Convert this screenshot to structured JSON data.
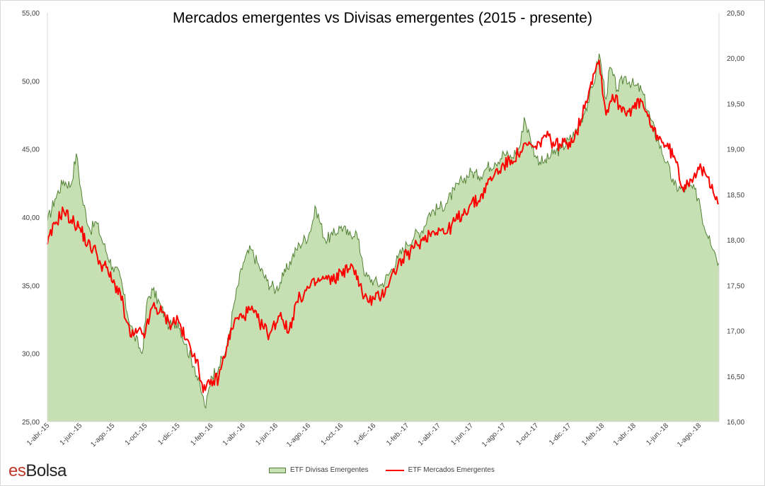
{
  "title": "Mercados emergentes vs Divisas emergentes (2015 - presente)",
  "brand": {
    "part1": "es",
    "part2": "Bolsa"
  },
  "chart_data": {
    "type": "area",
    "title": "Mercados emergentes vs Divisas emergentes (2015 - presente)",
    "x_tick_labels": [
      "1-abr.-15",
      "1-jun.-15",
      "1-ago.-15",
      "1-oct.-15",
      "1-dic.-15",
      "1-feb.-16",
      "1-abr.-16",
      "1-jun.-16",
      "1-ago.-16",
      "1-oct.-16",
      "1-dic.-16",
      "1-feb.-17",
      "1-abr.-17",
      "1-jun.-17",
      "1-ago.-17",
      "1-oct.-17",
      "1-dic.-17",
      "1-feb.-18",
      "1-abr.-18",
      "1-jun.-18",
      "1-ago.-18"
    ],
    "y_left": {
      "range": [
        25,
        55
      ],
      "ticks": [
        25,
        30,
        35,
        40,
        45,
        50,
        55
      ],
      "tick_labels": [
        "25,00",
        "30,00",
        "35,00",
        "40,00",
        "45,00",
        "50,00",
        "55,00"
      ]
    },
    "y_right": {
      "range": [
        16,
        20.5
      ],
      "ticks": [
        16,
        16.5,
        17,
        17.5,
        18,
        18.5,
        19,
        19.5,
        20,
        20.5
      ],
      "tick_labels": [
        "16,00",
        "16,50",
        "17,00",
        "17,50",
        "18,00",
        "18,50",
        "19,00",
        "19,50",
        "20,00",
        "20,50"
      ]
    },
    "legend_position": "bottom",
    "grid": false,
    "x_start": "2015-04-01",
    "series": [
      {
        "name": "ETF Divisas Emergentes",
        "kind": "area",
        "axis": "right",
        "color": "#548235",
        "fill": "#c6e0b4",
        "points": [
          [
            "2015-04-01",
            18.2
          ],
          [
            "2015-04-15",
            18.45
          ],
          [
            "2015-05-01",
            18.65
          ],
          [
            "2015-05-15",
            18.6
          ],
          [
            "2015-05-25",
            18.95
          ],
          [
            "2015-06-05",
            18.45
          ],
          [
            "2015-06-20",
            18.1
          ],
          [
            "2015-07-01",
            18.2
          ],
          [
            "2015-07-15",
            17.95
          ],
          [
            "2015-08-01",
            17.7
          ],
          [
            "2015-08-15",
            17.6
          ],
          [
            "2015-08-28",
            17.2
          ],
          [
            "2015-09-10",
            16.95
          ],
          [
            "2015-09-25",
            16.75
          ],
          [
            "2015-10-05",
            17.35
          ],
          [
            "2015-10-15",
            17.45
          ],
          [
            "2015-10-31",
            17.25
          ],
          [
            "2015-11-15",
            17.05
          ],
          [
            "2015-12-01",
            17.1
          ],
          [
            "2015-12-15",
            16.85
          ],
          [
            "2016-01-01",
            16.6
          ],
          [
            "2016-01-15",
            16.3
          ],
          [
            "2016-01-22",
            16.15
          ],
          [
            "2016-02-01",
            16.5
          ],
          [
            "2016-02-15",
            16.6
          ],
          [
            "2016-03-01",
            16.8
          ],
          [
            "2016-03-15",
            17.3
          ],
          [
            "2016-04-01",
            17.75
          ],
          [
            "2016-04-15",
            17.9
          ],
          [
            "2016-05-01",
            17.7
          ],
          [
            "2016-05-15",
            17.55
          ],
          [
            "2016-06-01",
            17.45
          ],
          [
            "2016-06-15",
            17.6
          ],
          [
            "2016-07-01",
            17.8
          ],
          [
            "2016-07-15",
            17.95
          ],
          [
            "2016-08-01",
            18.05
          ],
          [
            "2016-08-15",
            18.35
          ],
          [
            "2016-09-01",
            18.0
          ],
          [
            "2016-09-15",
            18.05
          ],
          [
            "2016-10-01",
            18.15
          ],
          [
            "2016-10-15",
            18.05
          ],
          [
            "2016-10-28",
            18.1
          ],
          [
            "2016-11-09",
            17.8
          ],
          [
            "2016-11-15",
            17.6
          ],
          [
            "2016-12-01",
            17.55
          ],
          [
            "2016-12-15",
            17.5
          ],
          [
            "2017-01-01",
            17.65
          ],
          [
            "2017-01-15",
            17.8
          ],
          [
            "2017-02-01",
            17.95
          ],
          [
            "2017-02-15",
            18.05
          ],
          [
            "2017-03-01",
            18.1
          ],
          [
            "2017-03-15",
            18.3
          ],
          [
            "2017-04-01",
            18.35
          ],
          [
            "2017-04-15",
            18.4
          ],
          [
            "2017-05-01",
            18.55
          ],
          [
            "2017-05-15",
            18.65
          ],
          [
            "2017-06-01",
            18.75
          ],
          [
            "2017-06-15",
            18.7
          ],
          [
            "2017-07-01",
            18.8
          ],
          [
            "2017-07-15",
            18.85
          ],
          [
            "2017-08-01",
            18.95
          ],
          [
            "2017-08-15",
            18.9
          ],
          [
            "2017-09-01",
            19.05
          ],
          [
            "2017-09-08",
            19.35
          ],
          [
            "2017-09-20",
            19.1
          ],
          [
            "2017-10-01",
            18.9
          ],
          [
            "2017-10-15",
            18.85
          ],
          [
            "2017-11-01",
            18.95
          ],
          [
            "2017-11-15",
            19.0
          ],
          [
            "2017-12-01",
            19.1
          ],
          [
            "2017-12-15",
            19.2
          ],
          [
            "2018-01-01",
            19.45
          ],
          [
            "2018-01-15",
            19.7
          ],
          [
            "2018-01-26",
            20.05
          ],
          [
            "2018-02-08",
            19.55
          ],
          [
            "2018-02-15",
            19.9
          ],
          [
            "2018-03-01",
            19.65
          ],
          [
            "2018-03-15",
            19.8
          ],
          [
            "2018-04-01",
            19.7
          ],
          [
            "2018-04-15",
            19.65
          ],
          [
            "2018-05-01",
            19.35
          ],
          [
            "2018-05-15",
            19.1
          ],
          [
            "2018-06-01",
            18.85
          ],
          [
            "2018-06-15",
            18.6
          ],
          [
            "2018-07-01",
            18.55
          ],
          [
            "2018-07-15",
            18.6
          ],
          [
            "2018-08-01",
            18.45
          ],
          [
            "2018-08-10",
            18.15
          ],
          [
            "2018-08-20",
            18.05
          ],
          [
            "2018-08-31",
            17.85
          ],
          [
            "2018-09-07",
            17.75
          ]
        ]
      },
      {
        "name": "ETF Mercados Emergentes",
        "kind": "line",
        "axis": "left",
        "color": "#ff0000",
        "points": [
          [
            "2015-04-01",
            38.0
          ],
          [
            "2015-04-15",
            39.5
          ],
          [
            "2015-05-01",
            40.5
          ],
          [
            "2015-05-15",
            39.8
          ],
          [
            "2015-06-01",
            39.2
          ],
          [
            "2015-06-15",
            38.0
          ],
          [
            "2015-07-01",
            37.5
          ],
          [
            "2015-07-10",
            36.5
          ],
          [
            "2015-07-20",
            36.3
          ],
          [
            "2015-08-01",
            35.2
          ],
          [
            "2015-08-15",
            34.5
          ],
          [
            "2015-08-25",
            32.5
          ],
          [
            "2015-09-05",
            31.2
          ],
          [
            "2015-09-15",
            31.5
          ],
          [
            "2015-10-01",
            31.5
          ],
          [
            "2015-10-15",
            33.5
          ],
          [
            "2015-11-01",
            33.0
          ],
          [
            "2015-11-15",
            32.2
          ],
          [
            "2015-12-01",
            32.5
          ],
          [
            "2015-12-15",
            31.0
          ],
          [
            "2016-01-01",
            30.0
          ],
          [
            "2016-01-15",
            27.8
          ],
          [
            "2016-01-21",
            27.3
          ],
          [
            "2016-02-05",
            28.0
          ],
          [
            "2016-02-15",
            28.2
          ],
          [
            "2016-03-01",
            30.5
          ],
          [
            "2016-03-15",
            32.3
          ],
          [
            "2016-04-01",
            32.8
          ],
          [
            "2016-04-15",
            33.2
          ],
          [
            "2016-05-01",
            32.3
          ],
          [
            "2016-05-20",
            31.4
          ],
          [
            "2016-06-10",
            33.0
          ],
          [
            "2016-06-24",
            31.5
          ],
          [
            "2016-07-10",
            33.8
          ],
          [
            "2016-08-01",
            34.8
          ],
          [
            "2016-08-15",
            35.2
          ],
          [
            "2016-09-01",
            35.5
          ],
          [
            "2016-09-15",
            35.3
          ],
          [
            "2016-10-01",
            36.0
          ],
          [
            "2016-10-15",
            36.2
          ],
          [
            "2016-10-28",
            36.1
          ],
          [
            "2016-11-09",
            34.5
          ],
          [
            "2016-11-20",
            33.8
          ],
          [
            "2016-12-01",
            34.0
          ],
          [
            "2016-12-15",
            34.2
          ],
          [
            "2017-01-01",
            35.5
          ],
          [
            "2017-01-15",
            36.5
          ],
          [
            "2017-02-01",
            37.2
          ],
          [
            "2017-02-15",
            37.8
          ],
          [
            "2017-03-01",
            38.3
          ],
          [
            "2017-03-15",
            38.8
          ],
          [
            "2017-04-01",
            39.2
          ],
          [
            "2017-04-15",
            38.8
          ],
          [
            "2017-05-01",
            39.7
          ],
          [
            "2017-05-15",
            40.2
          ],
          [
            "2017-06-01",
            41.0
          ],
          [
            "2017-06-15",
            41.2
          ],
          [
            "2017-07-01",
            42.4
          ],
          [
            "2017-07-15",
            43.2
          ],
          [
            "2017-08-01",
            43.8
          ],
          [
            "2017-08-15",
            44.2
          ],
          [
            "2017-09-01",
            44.8
          ],
          [
            "2017-09-15",
            45.3
          ],
          [
            "2017-10-01",
            45.0
          ],
          [
            "2017-10-15",
            46.0
          ],
          [
            "2017-11-01",
            45.5
          ],
          [
            "2017-11-15",
            45.3
          ],
          [
            "2017-12-01",
            45.5
          ],
          [
            "2017-12-15",
            46.2
          ],
          [
            "2018-01-01",
            48.5
          ],
          [
            "2018-01-15",
            50.5
          ],
          [
            "2018-01-26",
            51.5
          ],
          [
            "2018-02-08",
            47.5
          ],
          [
            "2018-02-20",
            49.0
          ],
          [
            "2018-03-05",
            48.2
          ],
          [
            "2018-03-20",
            47.8
          ],
          [
            "2018-04-01",
            48.0
          ],
          [
            "2018-04-15",
            48.5
          ],
          [
            "2018-05-01",
            46.8
          ],
          [
            "2018-05-15",
            46.0
          ],
          [
            "2018-06-01",
            45.2
          ],
          [
            "2018-06-15",
            44.5
          ],
          [
            "2018-07-01",
            42.2
          ],
          [
            "2018-07-15",
            42.8
          ],
          [
            "2018-08-01",
            43.5
          ],
          [
            "2018-08-15",
            43.0
          ],
          [
            "2018-08-25",
            42.4
          ],
          [
            "2018-09-07",
            41.0
          ]
        ]
      }
    ]
  }
}
